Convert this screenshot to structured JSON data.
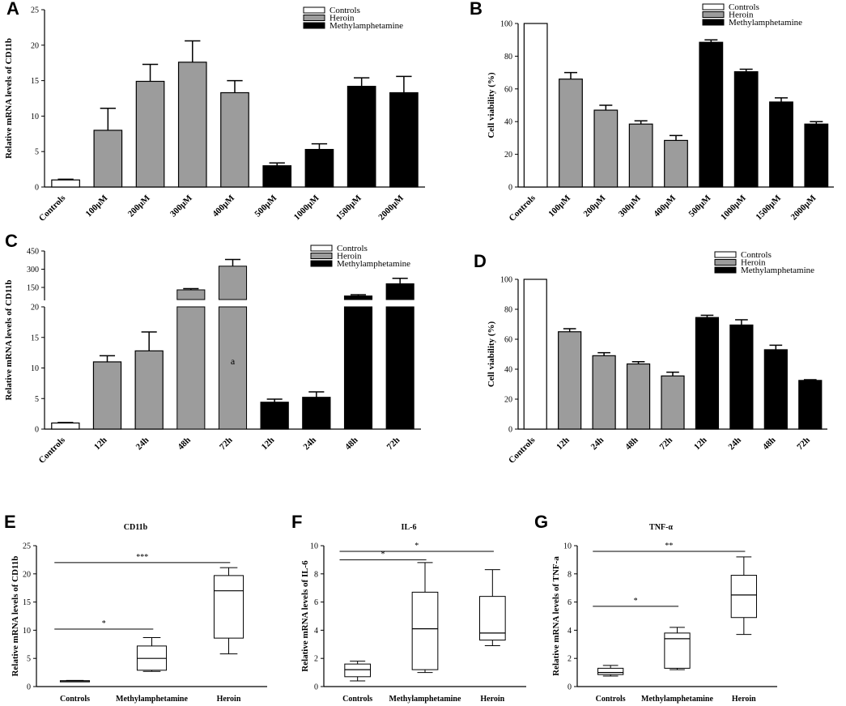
{
  "colors": {
    "Controls": "#ffffff",
    "Heroin": "#9c9c9c",
    "Methylamphetamine": "#000000"
  },
  "chart_data": [
    {
      "id": "A",
      "type": "bar",
      "panel_label": "A",
      "ylabel": "Relative mRNA levels of CD11b",
      "ylim": [
        0,
        25
      ],
      "yticks": [
        0,
        5,
        10,
        15,
        20,
        25
      ],
      "categories": [
        "Controls",
        "100μM",
        "200μM",
        "300μM",
        "400μM",
        "500μM",
        "1000μM",
        "1500μM",
        "2000μM"
      ],
      "groups": [
        "Controls",
        "Heroin",
        "Heroin",
        "Heroin",
        "Heroin",
        "Methylamphetamine",
        "Methylamphetamine",
        "Methylamphetamine",
        "Methylamphetamine"
      ],
      "values": [
        1.0,
        8.0,
        14.9,
        17.6,
        13.3,
        3.0,
        5.3,
        14.2,
        13.3
      ],
      "errors": [
        0.1,
        3.1,
        2.4,
        3.0,
        1.7,
        0.4,
        0.8,
        1.2,
        2.3
      ],
      "legend": [
        "Controls",
        "Heroin",
        "Methylamphetamine"
      ]
    },
    {
      "id": "B",
      "type": "bar",
      "panel_label": "B",
      "ylabel": "Cell viability (%)",
      "ylim": [
        0,
        100
      ],
      "yticks": [
        0,
        20,
        40,
        60,
        80,
        100
      ],
      "categories": [
        "Controls",
        "100μM",
        "200μM",
        "300μM",
        "400μM",
        "500μM",
        "1000μM",
        "1500μM",
        "2000μM"
      ],
      "groups": [
        "Controls",
        "Heroin",
        "Heroin",
        "Heroin",
        "Heroin",
        "Methylamphetamine",
        "Methylamphetamine",
        "Methylamphetamine",
        "Methylamphetamine"
      ],
      "values": [
        100,
        66,
        47,
        38.5,
        28.5,
        88.5,
        70.5,
        52,
        38.5
      ],
      "errors": [
        0,
        4,
        3,
        2,
        3,
        1.5,
        1.5,
        2.5,
        1.5
      ],
      "legend": [
        "Controls",
        "Heroin",
        "Methylamphetamine"
      ]
    },
    {
      "id": "C",
      "type": "bar",
      "panel_label": "C",
      "axis_break": true,
      "ylabel": "Relative mRNA levels of CD11b",
      "ylim": [
        0,
        20
      ],
      "yticks": [
        0,
        5,
        10,
        15,
        20
      ],
      "upper_ylim": [
        50,
        450
      ],
      "upper_yticks": [
        150,
        300,
        450
      ],
      "categories": [
        "Controls",
        "12h",
        "24h",
        "48h",
        "72h",
        "12h",
        "24h",
        "48h",
        "72h"
      ],
      "groups": [
        "Controls",
        "Heroin",
        "Heroin",
        "Heroin",
        "Heroin",
        "Methylamphetamine",
        "Methylamphetamine",
        "Methylamphetamine",
        "Methylamphetamine"
      ],
      "values": [
        1.0,
        11.0,
        12.8,
        130,
        325,
        4.4,
        5.2,
        80,
        180
      ],
      "errors": [
        0.1,
        1.0,
        3.1,
        10,
        55,
        0.5,
        0.9,
        10,
        45
      ],
      "annotation": "a",
      "legend": [
        "Controls",
        "Heroin",
        "Methylamphetamine"
      ]
    },
    {
      "id": "D",
      "type": "bar",
      "panel_label": "D",
      "ylabel": "Cell viability (%)",
      "ylim": [
        0,
        100
      ],
      "yticks": [
        0,
        20,
        40,
        60,
        80,
        100
      ],
      "categories": [
        "Controls",
        "12h",
        "24h",
        "48h",
        "72h",
        "12h",
        "24h",
        "48h",
        "72h"
      ],
      "groups": [
        "Controls",
        "Heroin",
        "Heroin",
        "Heroin",
        "Heroin",
        "Methylamphetamine",
        "Methylamphetamine",
        "Methylamphetamine",
        "Methylamphetamine"
      ],
      "values": [
        100,
        65,
        49,
        43.5,
        35.5,
        74.5,
        69.5,
        53,
        32.5
      ],
      "errors": [
        0,
        2,
        2,
        1.5,
        2.5,
        1.5,
        3.5,
        3,
        0.5
      ],
      "legend": [
        "Controls",
        "Heroin",
        "Methylamphetamine"
      ]
    },
    {
      "id": "E",
      "type": "box",
      "panel_label": "E",
      "title": "CD11b",
      "ylabel": "Relative mRNA levels of CD11b",
      "ylim": [
        0,
        25
      ],
      "yticks": [
        0,
        5,
        10,
        15,
        20,
        25
      ],
      "categories": [
        "Controls",
        "Methylamphetamine",
        "Heroin"
      ],
      "boxes": [
        {
          "min": 0.9,
          "q1": 0.95,
          "median": 1.0,
          "q3": 1.05,
          "max": 1.1
        },
        {
          "min": 2.7,
          "q1": 2.9,
          "median": 5.0,
          "q3": 7.2,
          "max": 8.7
        },
        {
          "min": 5.8,
          "q1": 8.6,
          "median": 17.0,
          "q3": 19.7,
          "max": 21.1
        }
      ],
      "significance": [
        {
          "from": 0,
          "to": 1,
          "y": 10.2,
          "label": "*"
        },
        {
          "from": 0,
          "to": 2,
          "y": 22.0,
          "label": "***"
        }
      ]
    },
    {
      "id": "F",
      "type": "box",
      "panel_label": "F",
      "title": "IL-6",
      "ylabel": "Relative mRNA levels of IL-6",
      "ylim": [
        0,
        10
      ],
      "yticks": [
        0,
        2,
        4,
        6,
        8,
        10
      ],
      "categories": [
        "Controls",
        "Methylamphetamine",
        "Heroin"
      ],
      "boxes": [
        {
          "min": 0.4,
          "q1": 0.7,
          "median": 1.2,
          "q3": 1.6,
          "max": 1.8
        },
        {
          "min": 1.0,
          "q1": 1.2,
          "median": 4.1,
          "q3": 6.7,
          "max": 8.8
        },
        {
          "min": 2.9,
          "q1": 3.3,
          "median": 3.8,
          "q3": 6.4,
          "max": 8.3
        }
      ],
      "significance": [
        {
          "from": 0,
          "to": 1,
          "y": 9.0,
          "label": "*"
        },
        {
          "from": 0,
          "to": 2,
          "y": 9.6,
          "label": "*"
        }
      ]
    },
    {
      "id": "G",
      "type": "box",
      "panel_label": "G",
      "title": "TNF-α",
      "ylabel": "Relative mRNA levels of TNF-a",
      "ylim": [
        0,
        10
      ],
      "yticks": [
        0,
        2,
        4,
        6,
        8,
        10
      ],
      "categories": [
        "Controls",
        "Methylamphetamine",
        "Heroin"
      ],
      "boxes": [
        {
          "min": 0.75,
          "q1": 0.85,
          "median": 1.0,
          "q3": 1.3,
          "max": 1.5
        },
        {
          "min": 1.2,
          "q1": 1.3,
          "median": 3.4,
          "q3": 3.8,
          "max": 4.2
        },
        {
          "min": 3.7,
          "q1": 4.9,
          "median": 6.5,
          "q3": 7.9,
          "max": 9.2
        }
      ],
      "significance": [
        {
          "from": 0,
          "to": 1,
          "y": 5.7,
          "label": "*"
        },
        {
          "from": 0,
          "to": 2,
          "y": 9.6,
          "label": "**"
        }
      ]
    }
  ]
}
